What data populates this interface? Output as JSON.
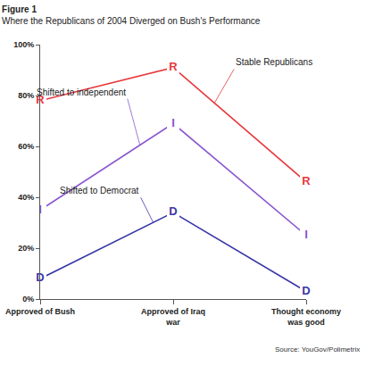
{
  "chart_data": {
    "type": "line",
    "title": "Figure 1",
    "subtitle": "Where the Republicans of 2004 Diverged on Bush's Performance",
    "source": "Source: YouGov/Polimetrix",
    "categories": [
      "Approved of Bush",
      "Approved of Iraq war",
      "Thought economy was good"
    ],
    "series": [
      {
        "name": "Stable Republicans",
        "color": "#e8383d",
        "marker": "R",
        "values": [
          78,
          91,
          46
        ]
      },
      {
        "name": "Shifted to independent",
        "color": "#8a55cf",
        "marker": "I",
        "values": [
          35,
          69,
          25
        ]
      },
      {
        "name": "Shifted to Democrat",
        "color": "#3a36a8",
        "marker": "D",
        "values": [
          8,
          34,
          3
        ]
      }
    ],
    "ylim": [
      0,
      100
    ],
    "yticks": [
      {
        "value": 0,
        "label": "0%"
      },
      {
        "value": 20,
        "label": "20%"
      },
      {
        "value": 40,
        "label": "40%"
      },
      {
        "value": 60,
        "label": "60%"
      },
      {
        "value": 80,
        "label": "80%"
      },
      {
        "value": 100,
        "label": "100%"
      }
    ],
    "grid": false
  }
}
